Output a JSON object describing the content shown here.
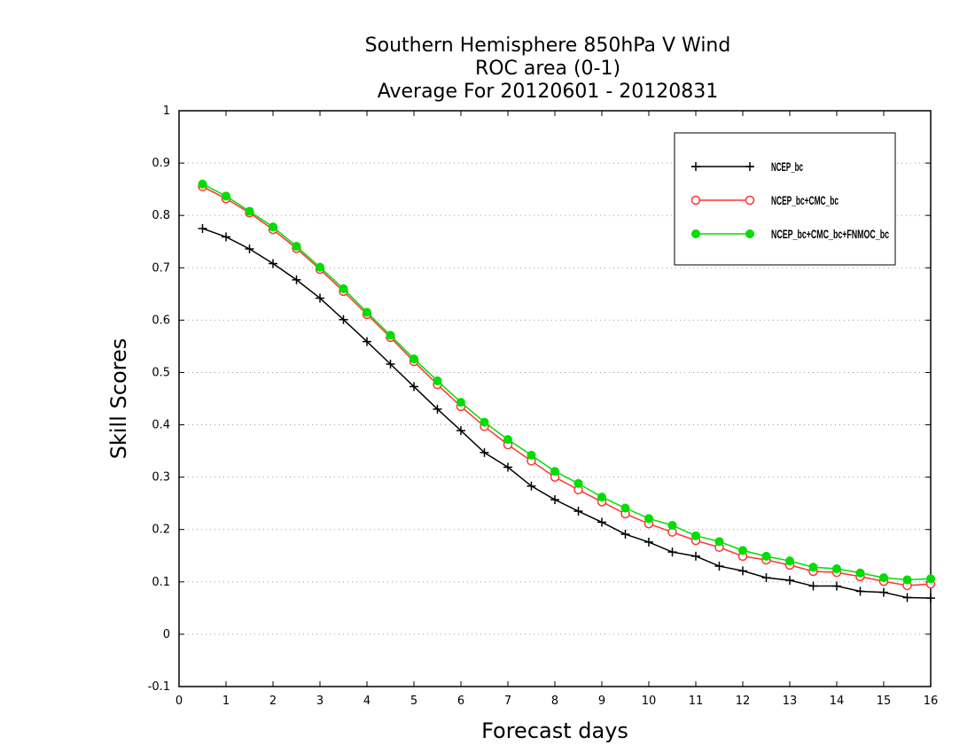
{
  "chart_data": {
    "type": "line",
    "title": [
      "Southern Hemisphere 850hPa V Wind",
      "ROC area (0-1)",
      "Average For 20120601 - 20120831"
    ],
    "xlabel": "Forecast days",
    "ylabel": "Skill Scores",
    "xlim": [
      0,
      16
    ],
    "ylim": [
      -0.1,
      1
    ],
    "xticks": [
      "0",
      "1",
      "2",
      "3",
      "4",
      "5",
      "6",
      "7",
      "8",
      "9",
      "10",
      "11",
      "12",
      "13",
      "14",
      "15",
      "16"
    ],
    "yticks": [
      "-0.1",
      "0",
      "0.1",
      "0.2",
      "0.3",
      "0.4",
      "0.5",
      "0.6",
      "0.7",
      "0.8",
      "0.9",
      "1"
    ],
    "grid": true,
    "legend_position": "top-right",
    "x": [
      0.5,
      1,
      1.5,
      2,
      2.5,
      3,
      3.5,
      4,
      4.5,
      5,
      5.5,
      6,
      6.5,
      7,
      7.5,
      8,
      8.5,
      9,
      9.5,
      10,
      10.5,
      11,
      11.5,
      12,
      12.5,
      13,
      13.5,
      14,
      14.5,
      15,
      15.5,
      16
    ],
    "series": [
      {
        "name": "NCEP_bc",
        "color": "#000000",
        "marker": "plus",
        "values": [
          0.775,
          0.759,
          0.736,
          0.708,
          0.677,
          0.642,
          0.601,
          0.559,
          0.516,
          0.473,
          0.43,
          0.389,
          0.347,
          0.319,
          0.283,
          0.257,
          0.235,
          0.214,
          0.191,
          0.176,
          0.157,
          0.149,
          0.13,
          0.121,
          0.108,
          0.103,
          0.092,
          0.092,
          0.082,
          0.08,
          0.07,
          0.069
        ]
      },
      {
        "name": "NCEP_bc+CMC_bc",
        "color": "#ff3333",
        "marker": "open-circle",
        "values": [
          0.855,
          0.832,
          0.805,
          0.773,
          0.737,
          0.697,
          0.655,
          0.611,
          0.567,
          0.521,
          0.477,
          0.435,
          0.397,
          0.362,
          0.331,
          0.3,
          0.276,
          0.253,
          0.23,
          0.211,
          0.195,
          0.179,
          0.166,
          0.149,
          0.142,
          0.132,
          0.12,
          0.118,
          0.11,
          0.101,
          0.093,
          0.096
        ]
      },
      {
        "name": "NCEP_bc+CMC_bc+FNMOC_bc",
        "color": "#00dd00",
        "marker": "filled-circle",
        "values": [
          0.86,
          0.837,
          0.808,
          0.778,
          0.741,
          0.701,
          0.66,
          0.615,
          0.571,
          0.526,
          0.484,
          0.443,
          0.405,
          0.372,
          0.342,
          0.311,
          0.288,
          0.262,
          0.241,
          0.221,
          0.208,
          0.188,
          0.177,
          0.16,
          0.149,
          0.14,
          0.128,
          0.125,
          0.117,
          0.108,
          0.104,
          0.106
        ]
      }
    ]
  }
}
